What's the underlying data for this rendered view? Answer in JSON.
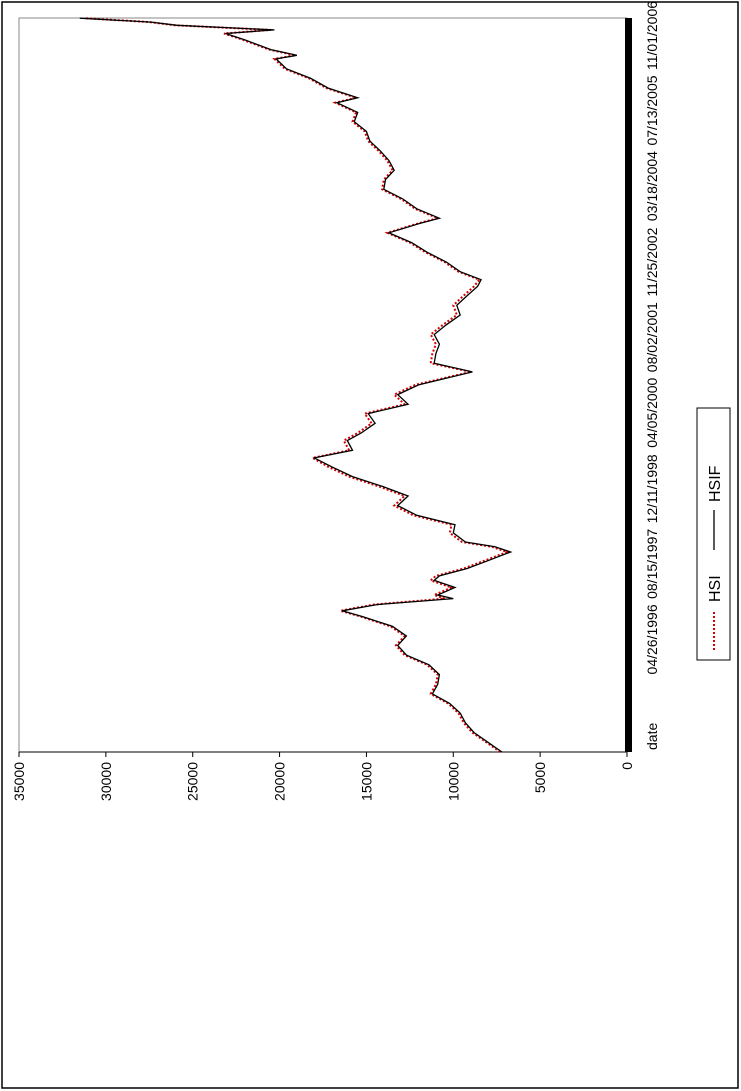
{
  "chart_data": {
    "type": "line",
    "orientation": "rotated-90-counterclockwise",
    "title": "",
    "x_tick_labels": [
      "date",
      "04/26/1996",
      "08/15/1997",
      "12/11/1998",
      "04/05/2000",
      "08/02/2001",
      "11/25/2002",
      "03/18/2004",
      "07/13/2005",
      "11/01/2006"
    ],
    "y_ticks": [
      35000,
      30000,
      25000,
      20000,
      15000,
      10000,
      5000,
      0
    ],
    "y_tick_labels": [
      "35000",
      "30000",
      "25000",
      "20000",
      "15000",
      "10000",
      "5000",
      "0"
    ],
    "ylim": [
      0,
      35000
    ],
    "xlim": [
      "1995-03-01",
      "2007-10-31"
    ],
    "grid": false,
    "legend_position": "bottom",
    "series": [
      {
        "name": "HSI",
        "color": "#d40000",
        "style": "dotted",
        "x": [
          "1995-03-01",
          "1995-05-01",
          "1995-07-01",
          "1995-09-01",
          "1995-11-01",
          "1996-01-01",
          "1996-03-01",
          "1996-05-01",
          "1996-07-01",
          "1996-09-01",
          "1996-11-01",
          "1997-01-01",
          "1997-03-01",
          "1997-05-01",
          "1997-07-01",
          "1997-08-07",
          "1997-09-15",
          "1997-10-23",
          "1997-11-15",
          "1998-01-01",
          "1998-02-15",
          "1998-03-15",
          "1998-05-01",
          "1998-06-15",
          "1998-08-13",
          "1998-09-15",
          "1998-10-15",
          "1998-12-11",
          "1999-02-01",
          "1999-04-01",
          "1999-06-01",
          "1999-08-01",
          "1999-10-01",
          "1999-12-01",
          "2000-02-01",
          "2000-03-28",
          "2000-05-15",
          "2000-07-15",
          "2000-09-01",
          "2000-11-01",
          "2001-01-01",
          "2001-03-01",
          "2001-05-01",
          "2001-07-01",
          "2001-09-21",
          "2001-11-15",
          "2002-01-15",
          "2002-03-15",
          "2002-05-15",
          "2002-07-15",
          "2002-09-15",
          "2002-11-15",
          "2003-01-15",
          "2003-03-15",
          "2003-04-25",
          "2003-06-15",
          "2003-08-15",
          "2003-10-15",
          "2003-12-15",
          "2004-02-15",
          "2004-04-15",
          "2004-05-17",
          "2004-07-15",
          "2004-09-15",
          "2004-11-15",
          "2005-01-15",
          "2005-03-15",
          "2005-05-15",
          "2005-07-15",
          "2005-09-15",
          "2005-11-15",
          "2006-01-15",
          "2006-03-15",
          "2006-05-15",
          "2006-06-15",
          "2006-08-15",
          "2006-10-15",
          "2006-12-15",
          "2007-02-15",
          "2007-03-10",
          "2007-04-15",
          "2007-06-15",
          "2007-07-25",
          "2007-08-17",
          "2007-09-15",
          "2007-10-05",
          "2007-10-30"
        ],
        "values": [
          7300,
          8100,
          8900,
          9400,
          9700,
          10300,
          11300,
          11000,
          10900,
          11500,
          12800,
          13300,
          12800,
          13600,
          15300,
          16500,
          14600,
          10500,
          11100,
          10100,
          11300,
          11000,
          9400,
          8300,
          6900,
          7800,
          9500,
          10200,
          10100,
          12300,
          13400,
          12800,
          14300,
          16000,
          17200,
          18100,
          16000,
          16300,
          15500,
          14700,
          15100,
          12800,
          13400,
          12200,
          9000,
          11300,
          11200,
          11000,
          11300,
          10600,
          9800,
          10000,
          9400,
          8800,
          8500,
          9700,
          10500,
          11600,
          12500,
          13800,
          12000,
          10900,
          12200,
          13000,
          14100,
          14000,
          13500,
          13800,
          14300,
          14900,
          15100,
          15800,
          15600,
          16800,
          15600,
          17300,
          18300,
          19700,
          20300,
          19100,
          20600,
          22100,
          23200,
          20500,
          26000,
          27500,
          31200
        ]
      },
      {
        "name": "HSIF",
        "color": "#000000",
        "style": "solid",
        "x": [
          "1995-03-01",
          "1995-05-01",
          "1995-07-01",
          "1995-09-01",
          "1995-11-01",
          "1996-01-01",
          "1996-03-01",
          "1996-05-01",
          "1996-07-01",
          "1996-09-01",
          "1996-11-01",
          "1997-01-01",
          "1997-03-01",
          "1997-05-01",
          "1997-07-01",
          "1997-08-07",
          "1997-09-15",
          "1997-10-23",
          "1997-11-15",
          "1998-01-01",
          "1998-02-15",
          "1998-03-15",
          "1998-05-01",
          "1998-06-15",
          "1998-08-13",
          "1998-09-15",
          "1998-10-15",
          "1998-12-11",
          "1999-02-01",
          "1999-04-01",
          "1999-06-01",
          "1999-08-01",
          "1999-10-01",
          "1999-12-01",
          "2000-02-01",
          "2000-03-28",
          "2000-05-15",
          "2000-07-15",
          "2000-09-01",
          "2000-11-01",
          "2001-01-01",
          "2001-03-01",
          "2001-05-01",
          "2001-07-01",
          "2001-09-21",
          "2001-11-15",
          "2002-01-15",
          "2002-03-15",
          "2002-05-15",
          "2002-07-15",
          "2002-09-15",
          "2002-11-15",
          "2003-01-15",
          "2003-03-15",
          "2003-04-25",
          "2003-06-15",
          "2003-08-15",
          "2003-10-15",
          "2003-12-15",
          "2004-02-15",
          "2004-04-15",
          "2004-05-17",
          "2004-07-15",
          "2004-09-15",
          "2004-11-15",
          "2005-01-15",
          "2005-03-15",
          "2005-05-15",
          "2005-07-15",
          "2005-09-15",
          "2005-11-15",
          "2006-01-15",
          "2006-03-15",
          "2006-05-15",
          "2006-06-15",
          "2006-08-15",
          "2006-10-15",
          "2006-12-15",
          "2007-02-15",
          "2007-03-10",
          "2007-04-15",
          "2007-06-15",
          "2007-07-25",
          "2007-08-17",
          "2007-09-15",
          "2007-10-05",
          "2007-10-30"
        ],
        "values": [
          7200,
          8000,
          8800,
          9300,
          9600,
          10200,
          11200,
          10900,
          10800,
          11400,
          12700,
          13200,
          12700,
          13500,
          15200,
          16400,
          14400,
          10000,
          10900,
          9900,
          11100,
          10800,
          9200,
          8100,
          6700,
          7600,
          9300,
          10000,
          9900,
          12100,
          13200,
          12600,
          14100,
          15800,
          17000,
          18000,
          15800,
          16100,
          15300,
          14500,
          14900,
          12600,
          13200,
          12000,
          8900,
          11100,
          11000,
          10800,
          11100,
          10400,
          9600,
          9800,
          9200,
          8600,
          8400,
          9600,
          10400,
          11500,
          12400,
          13700,
          11900,
          10800,
          12100,
          12900,
          14000,
          13900,
          13400,
          13700,
          14200,
          14800,
          15000,
          15700,
          15500,
          16700,
          15500,
          17200,
          18200,
          19600,
          20200,
          19000,
          20500,
          22000,
          23100,
          20300,
          25900,
          27400,
          31500
        ]
      }
    ]
  }
}
